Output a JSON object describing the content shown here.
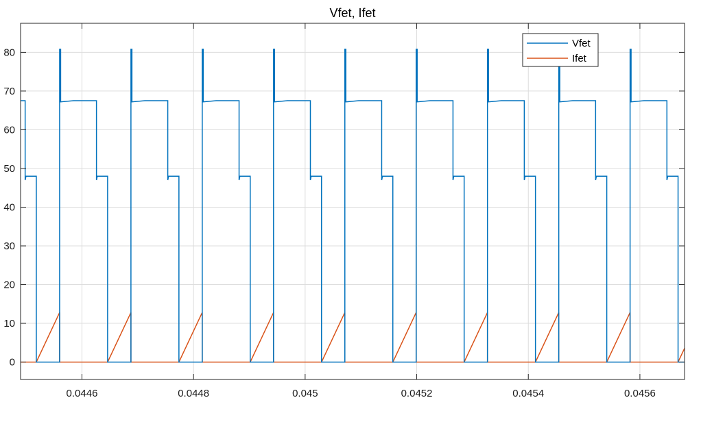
{
  "chart_data": {
    "type": "line",
    "title": "Vfet, Ifet",
    "xlabel": "",
    "ylabel": "",
    "xlim": [
      0.04449,
      0.04568
    ],
    "ylim": [
      -4.5,
      87.5
    ],
    "grid": true,
    "legend_position": "top-right",
    "x_tick_values": [
      0.0446,
      0.0448,
      0.045,
      0.0452,
      0.0454,
      0.0456
    ],
    "x_tick_labels": [
      "0.0446",
      "0.0448",
      "0.045",
      "0.0452",
      "0.0454",
      "0.0456"
    ],
    "y_tick_values": [
      0,
      10,
      20,
      30,
      40,
      50,
      60,
      70,
      80
    ],
    "y_tick_labels": [
      "0",
      "10",
      "20",
      "30",
      "40",
      "50",
      "60",
      "70",
      "80"
    ],
    "period": 0.0001278,
    "first_off_edge": 0.04456,
    "vfet_levels": {
      "off_plateau": 67.5,
      "ringing_peak": 80.8,
      "mid_plateau": 48.0,
      "on": 0.0
    },
    "ifet_peak": 12.8,
    "series": [
      {
        "name": "Vfet",
        "color": "#0072BD"
      },
      {
        "name": "Ifet",
        "color": "#D95319"
      }
    ]
  }
}
